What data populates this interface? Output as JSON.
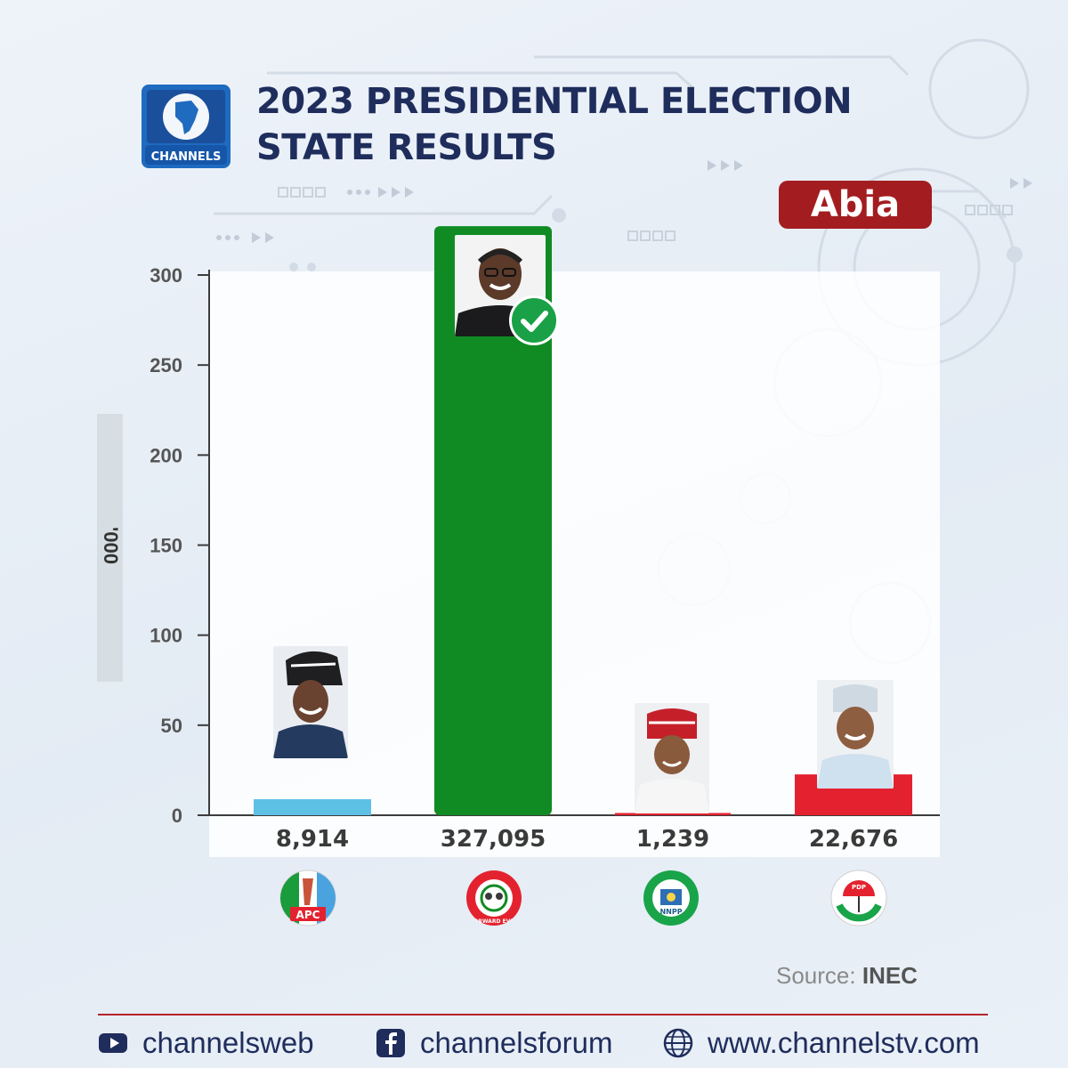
{
  "colors": {
    "navy": "#1f2d5c",
    "state_badge": "#a31d20",
    "apc": "#5dc1e6",
    "lp": "#108b24",
    "nnpp": "#1b5e8a",
    "pdp": "#e4222f",
    "check": "#1aa046"
  },
  "header": {
    "logo_text": "CHANNELS",
    "title_line1": "2023 PRESIDENTIAL ELECTION",
    "title_line2": "STATE RESULTS",
    "state": "Abia"
  },
  "chart_data": {
    "type": "bar",
    "title": "2023 PRESIDENTIAL ELECTION STATE RESULTS",
    "subtitle": "Abia",
    "ylabel": "'000",
    "ylim": [
      0,
      300
    ],
    "yticks": [
      0,
      50,
      100,
      150,
      200,
      250,
      300
    ],
    "categories": [
      "APC",
      "LP",
      "NNPP",
      "PDP"
    ],
    "values": [
      8914,
      327095,
      1239,
      22676
    ],
    "value_labels": [
      "8,914",
      "327,095",
      "1,239",
      "22,676"
    ],
    "bar_colors": [
      "#5dc1e6",
      "#108b24",
      "#e4222f",
      "#e4222f"
    ],
    "winner": "LP",
    "grid": false
  },
  "party_logos": [
    {
      "icon": "apc-logo-icon",
      "text": "APC"
    },
    {
      "icon": "lp-logo-icon",
      "text": "FORWARD EVER"
    },
    {
      "icon": "nnpp-logo-icon",
      "text": "NNPP"
    },
    {
      "icon": "pdp-logo-icon",
      "text": "PDP"
    }
  ],
  "source": {
    "label": "Source:",
    "value": "INEC"
  },
  "footer": {
    "youtube": "channelsweb",
    "facebook": "channelsforum",
    "website": "www.channelstv.com"
  }
}
